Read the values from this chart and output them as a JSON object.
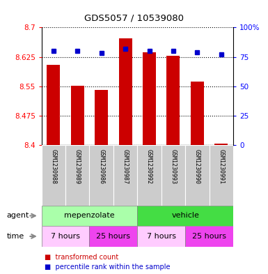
{
  "title": "GDS5057 / 10539080",
  "samples": [
    "GSM1230988",
    "GSM1230989",
    "GSM1230986",
    "GSM1230987",
    "GSM1230992",
    "GSM1230993",
    "GSM1230990",
    "GSM1230991"
  ],
  "bar_values": [
    8.605,
    8.551,
    8.54,
    8.672,
    8.637,
    8.628,
    8.562,
    8.404
  ],
  "bar_bottom": 8.4,
  "percentile_values": [
    80,
    80,
    78,
    82,
    80,
    80,
    79,
    77
  ],
  "ylim_left": [
    8.4,
    8.7
  ],
  "ylim_right": [
    0,
    100
  ],
  "yticks_left": [
    8.4,
    8.475,
    8.55,
    8.625,
    8.7
  ],
  "ytick_labels_left": [
    "8.4",
    "8.475",
    "8.55",
    "8.625",
    "8.7"
  ],
  "yticks_right": [
    0,
    25,
    50,
    75,
    100
  ],
  "ytick_labels_right": [
    "0",
    "25",
    "50",
    "75",
    "100%"
  ],
  "bar_color": "#cc0000",
  "dot_color": "#0000cc",
  "agent_groups": [
    {
      "label": "mepenzolate",
      "start": 0,
      "end": 4,
      "color": "#aaffaa"
    },
    {
      "label": "vehicle",
      "start": 4,
      "end": 8,
      "color": "#44dd44"
    }
  ],
  "time_groups": [
    {
      "label": "7 hours",
      "start": 0,
      "end": 2,
      "color": "#ffccff"
    },
    {
      "label": "25 hours",
      "start": 2,
      "end": 4,
      "color": "#ee44ee"
    },
    {
      "label": "7 hours",
      "start": 4,
      "end": 6,
      "color": "#ffccff"
    },
    {
      "label": "25 hours",
      "start": 6,
      "end": 8,
      "color": "#ee44ee"
    }
  ],
  "legend_bar_label": "transformed count",
  "legend_dot_label": "percentile rank within the sample",
  "agent_label": "agent",
  "time_label": "time"
}
